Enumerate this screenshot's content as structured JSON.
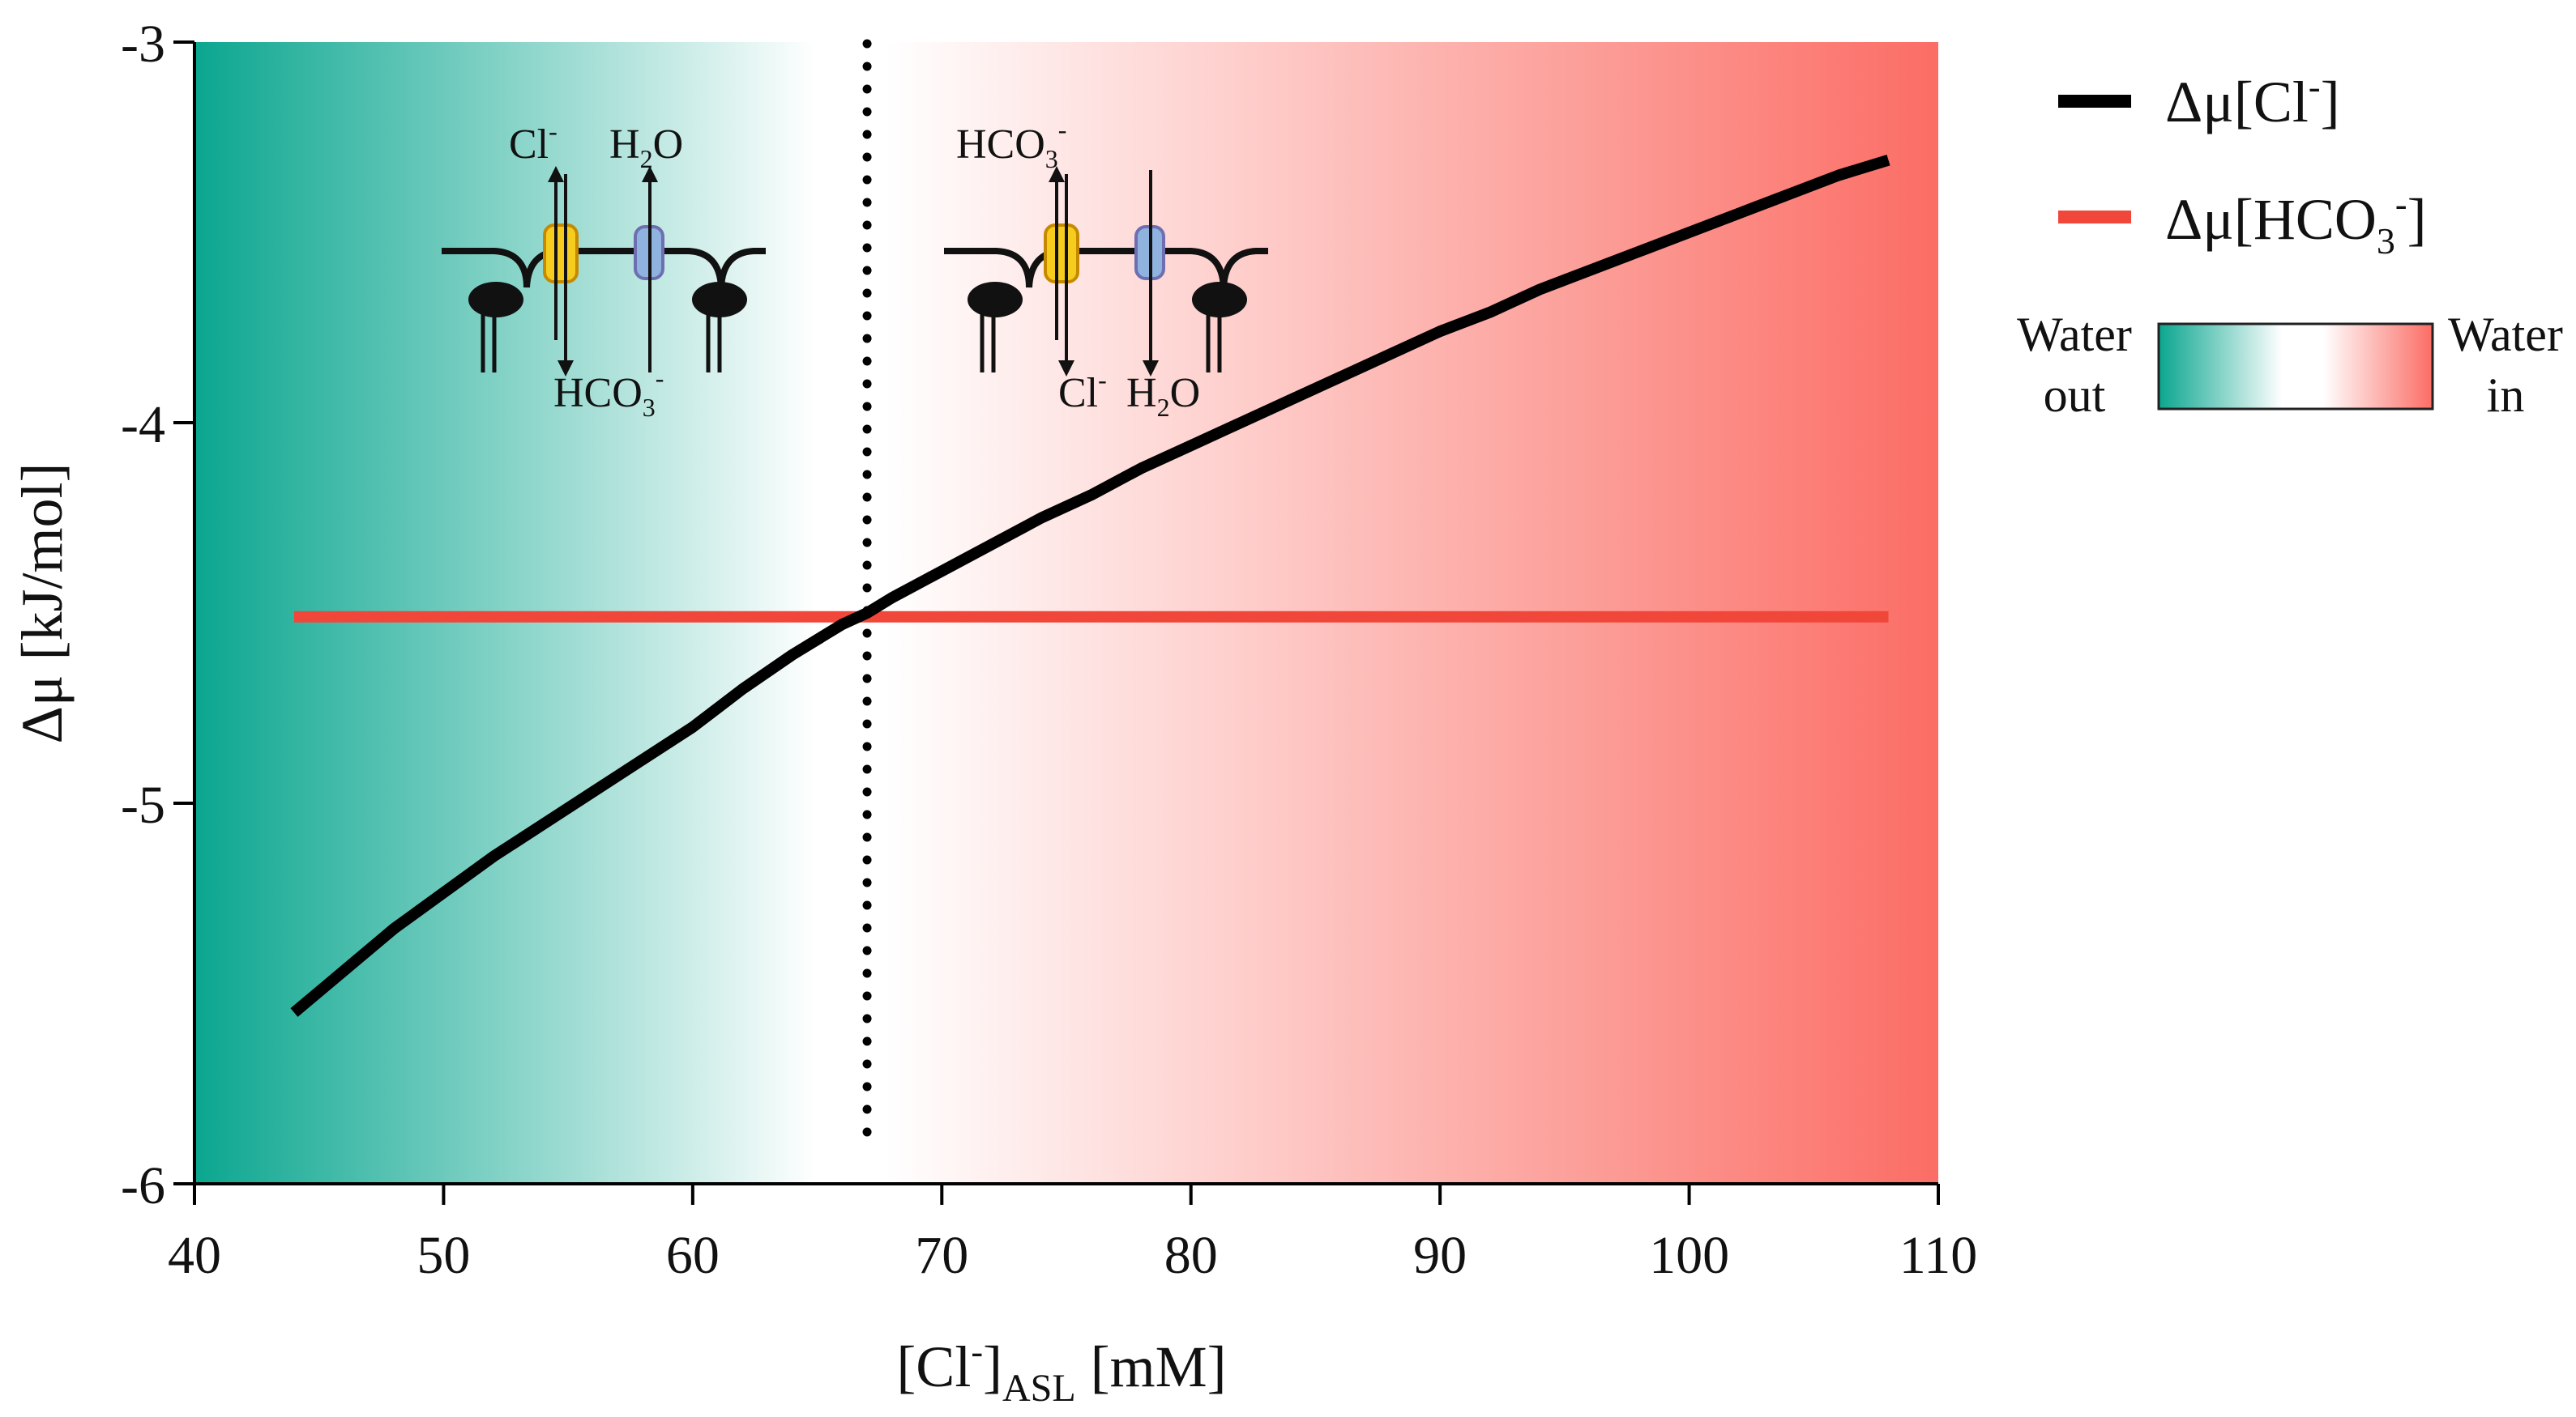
{
  "chart_data": {
    "type": "line",
    "xlim": [
      40,
      110
    ],
    "ylim": [
      -6,
      -3
    ],
    "x_ticks": [
      40,
      50,
      60,
      70,
      80,
      90,
      100,
      110
    ],
    "y_ticks": [
      -3,
      -4,
      -5,
      -6
    ],
    "x_tick_labels": [
      "40",
      "50",
      "60",
      "70",
      "80",
      "90",
      "100",
      "110"
    ],
    "y_tick_labels": [
      "-3",
      "-4",
      "-5",
      "-6"
    ],
    "xlabel": {
      "base": "[Cl",
      "sup": "-",
      "close": "]",
      "sub": "ASL",
      "unit": " [mM]"
    },
    "ylabel": "Δμ [kJ/mol]",
    "series": [
      {
        "name": "Δμ[Cl⁻]",
        "color": "#000000",
        "x": [
          44,
          48,
          52,
          56,
          60,
          62,
          64,
          66,
          67,
          68,
          70,
          72,
          74,
          76,
          78,
          80,
          84,
          88,
          90,
          92,
          94,
          98,
          102,
          106,
          108
        ],
        "y": [
          -5.55,
          -5.33,
          -5.14,
          -4.97,
          -4.8,
          -4.7,
          -4.61,
          -4.53,
          -4.5,
          -4.46,
          -4.39,
          -4.32,
          -4.25,
          -4.19,
          -4.12,
          -4.06,
          -3.94,
          -3.82,
          -3.76,
          -3.71,
          -3.65,
          -3.55,
          -3.45,
          -3.35,
          -3.31
        ]
      },
      {
        "name": "Δμ[HCO₃⁻]",
        "color": "#f0473a",
        "x": [
          44,
          108
        ],
        "y": [
          -4.51,
          -4.51
        ]
      }
    ],
    "vline": {
      "x": 67,
      "style": "dotted"
    },
    "background_gradient": {
      "left_color": "#0aa68f",
      "mid_color": "#ffffff",
      "right_color": "#fb6d65",
      "mid_x": 66
    },
    "legend": {
      "position": "right",
      "entries": [
        {
          "label": "Δμ[Cl",
          "sup": "-",
          "close": "]",
          "color": "#000000"
        },
        {
          "label": "Δμ[HCO",
          "sub": "3",
          "sup": "-",
          "close": "]",
          "color": "#f0473a"
        }
      ],
      "gradient_bar": {
        "left_label": [
          "Water",
          "out"
        ],
        "right_label": [
          "Water",
          "in"
        ]
      }
    },
    "annotations": {
      "left_schematic": {
        "top_left": "Cl",
        "top_left_sup": "-",
        "top_right": "H",
        "top_right_sub": "2",
        "top_right_end": "O",
        "bottom": "HCO",
        "bottom_sub": "3",
        "bottom_sup": "-"
      },
      "right_schematic": {
        "top": "HCO",
        "top_sub": "3",
        "top_sup": "-",
        "bottom_left": "Cl",
        "bottom_left_sup": "-",
        "bottom_right": "H",
        "bottom_right_sub": "2",
        "bottom_right_end": "O"
      }
    }
  }
}
